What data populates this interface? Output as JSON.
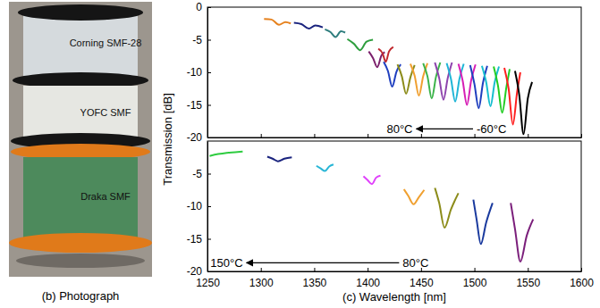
{
  "photograph": {
    "caption": "(b) Photograph",
    "labels": [
      "Corning SMF-28",
      "YOFC SMF",
      "Draka SMF"
    ]
  },
  "chart_data": [
    {
      "type": "line",
      "y_label": "Transmission [dB]",
      "xlim": [
        1250,
        1600
      ],
      "xticks": [
        1250,
        1300,
        1350,
        1400,
        1450,
        1500,
        1550,
        1600
      ],
      "ylim": [
        -20,
        0
      ],
      "yticks": [
        0,
        -5,
        -10,
        -15,
        -20
      ],
      "tick_labels": "y",
      "series": [
        {
          "color": "#e6821e",
          "x": [
            1303,
            1310,
            1317,
            1323,
            1328
          ],
          "values": [
            -1.8,
            -1.9,
            -2.7,
            -2.3,
            -2.5
          ]
        },
        {
          "color": "#1a237e",
          "x": [
            1331,
            1338,
            1345,
            1351,
            1358
          ],
          "values": [
            -2.4,
            -2.6,
            -3.3,
            -2.8,
            -3.1
          ]
        },
        {
          "color": "#2e7d7d",
          "x": [
            1360,
            1365,
            1370,
            1375,
            1379
          ],
          "values": [
            -3.4,
            -3.8,
            -4.6,
            -3.7,
            -3.9
          ]
        },
        {
          "color": "#2e9e3e",
          "x": [
            1381,
            1387,
            1393,
            1399,
            1405
          ],
          "values": [
            -4.9,
            -5.6,
            -6.6,
            -5.3,
            -5.0
          ]
        },
        {
          "color": "#7b1f6b",
          "x": [
            1401,
            1405,
            1409,
            1413,
            1416
          ],
          "values": [
            -6.8,
            -7.8,
            -9.2,
            -7.4,
            -6.9
          ]
        },
        {
          "color": "#c0282d",
          "x": [
            1410,
            1414,
            1417,
            1420,
            1424
          ],
          "values": [
            -6.4,
            -7.1,
            -8.4,
            -6.8,
            -6.1
          ]
        },
        {
          "color": "#1f3fbf",
          "x": [
            1415,
            1419,
            1423,
            1427,
            1431
          ],
          "values": [
            -8.4,
            -9.8,
            -12.2,
            -9.9,
            -8.8
          ]
        },
        {
          "color": "#8c8c1a",
          "x": [
            1428,
            1432,
            1436,
            1440,
            1444
          ],
          "values": [
            -8.8,
            -10.6,
            -13.3,
            -10.8,
            -8.9
          ]
        },
        {
          "color": "#f0a030",
          "x": [
            1440,
            1444,
            1448,
            1452,
            1456
          ],
          "values": [
            -8.7,
            -10.5,
            -13.6,
            -10.6,
            -8.6
          ]
        },
        {
          "color": "#3cb34a",
          "x": [
            1452,
            1456,
            1460,
            1464,
            1468
          ],
          "values": [
            -8.6,
            -10.6,
            -14.0,
            -10.7,
            -8.5
          ]
        },
        {
          "color": "#8e44ad",
          "x": [
            1463,
            1467,
            1471,
            1475,
            1479
          ],
          "values": [
            -8.5,
            -10.9,
            -14.2,
            -10.9,
            -8.5
          ]
        },
        {
          "color": "#1fb5d6",
          "x": [
            1474,
            1478,
            1482,
            1486,
            1490
          ],
          "values": [
            -8.6,
            -11.0,
            -14.5,
            -11.0,
            -8.7
          ]
        },
        {
          "color": "#d61fb5",
          "x": [
            1485,
            1489,
            1493,
            1497,
            1501
          ],
          "values": [
            -8.7,
            -11.3,
            -15.0,
            -11.2,
            -8.8
          ]
        },
        {
          "color": "#1f3fbf",
          "x": [
            1496,
            1500,
            1504,
            1508,
            1512
          ],
          "values": [
            -8.9,
            -11.8,
            -15.5,
            -11.6,
            -9.0
          ]
        },
        {
          "color": "#17becf",
          "x": [
            1507,
            1511,
            1515,
            1519,
            1523
          ],
          "values": [
            -9.0,
            -11.5,
            -15.2,
            -11.5,
            -9.1
          ]
        },
        {
          "color": "#22cc22",
          "x": [
            1518,
            1522,
            1526,
            1530,
            1533
          ],
          "values": [
            -9.1,
            -12.0,
            -16.2,
            -12.2,
            -9.5
          ]
        },
        {
          "color": "#ff2020",
          "x": [
            1528,
            1532,
            1536,
            1540,
            1543
          ],
          "values": [
            -9.3,
            -12.5,
            -18.0,
            -13.0,
            -10.0
          ]
        },
        {
          "color": "#000000",
          "x": [
            1538,
            1542,
            1546,
            1550,
            1554
          ],
          "values": [
            -9.8,
            -13.5,
            -19.5,
            -14.0,
            -11.5
          ]
        }
      ],
      "annotations": [
        {
          "text": "80°C",
          "x": 1430,
          "y": -19.3
        },
        {
          "text": "-60°C",
          "x": 1516,
          "y": -19.3
        }
      ]
    },
    {
      "type": "line",
      "x_label": "(c) Wavelength [nm]",
      "xlim": [
        1250,
        1600
      ],
      "xticks": [
        1250,
        1300,
        1350,
        1400,
        1450,
        1500,
        1550,
        1600
      ],
      "ylim": [
        -20,
        0
      ],
      "yticks": [
        -5,
        -10,
        -15,
        -20
      ],
      "series": [
        {
          "color": "#2ecc40",
          "x": [
            1252,
            1260,
            1268,
            1276,
            1283
          ],
          "values": [
            -2.3,
            -2.0,
            -1.8,
            -1.7,
            -1.6
          ]
        },
        {
          "color": "#1a237e",
          "x": [
            1306,
            1311,
            1316,
            1322,
            1329
          ],
          "values": [
            -2.4,
            -2.7,
            -3.1,
            -2.7,
            -2.5
          ]
        },
        {
          "color": "#29b6d6",
          "x": [
            1352,
            1356,
            1360,
            1364,
            1368
          ],
          "values": [
            -3.8,
            -4.2,
            -4.6,
            -3.9,
            -3.6
          ]
        },
        {
          "color": "#e040fb",
          "x": [
            1396,
            1400,
            1404,
            1408,
            1412
          ],
          "values": [
            -5.4,
            -6.0,
            -6.6,
            -5.6,
            -5.3
          ]
        },
        {
          "color": "#f0a030",
          "x": [
            1434,
            1438,
            1443,
            1448,
            1453
          ],
          "values": [
            -7.4,
            -8.4,
            -9.7,
            -8.6,
            -7.5
          ]
        },
        {
          "color": "#8c8c1a",
          "x": [
            1463,
            1467,
            1472,
            1478,
            1485
          ],
          "values": [
            -7.2,
            -9.5,
            -13.3,
            -10.5,
            -8.0
          ]
        },
        {
          "color": "#1a3a9e",
          "x": [
            1499,
            1502,
            1506,
            1511,
            1517
          ],
          "values": [
            -9.0,
            -12.0,
            -15.8,
            -12.5,
            -9.5
          ]
        },
        {
          "color": "#7b1f7b",
          "x": [
            1534,
            1538,
            1543,
            1549,
            1555
          ],
          "values": [
            -9.5,
            -13.5,
            -18.5,
            -14.5,
            -12.0
          ]
        }
      ],
      "annotations": [
        {
          "text": "150°C",
          "x": 1268,
          "y": -19.3
        },
        {
          "text": "80°C",
          "x": 1445,
          "y": -19.3
        }
      ]
    }
  ]
}
